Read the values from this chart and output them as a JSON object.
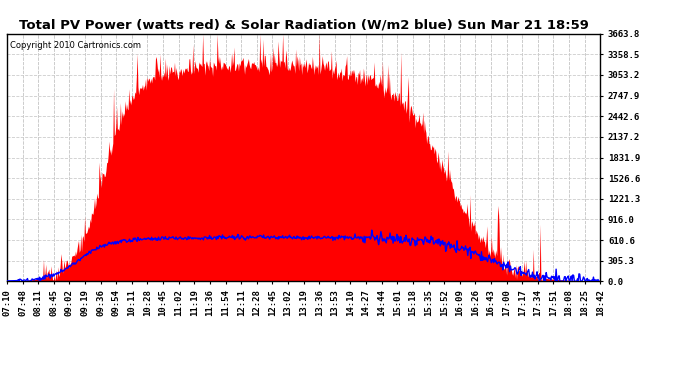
{
  "title": "Total PV Power (watts red) & Solar Radiation (W/m2 blue) Sun Mar 21 18:59",
  "copyright_text": "Copyright 2010 Cartronics.com",
  "background_color": "#ffffff",
  "plot_bg_color": "#ffffff",
  "grid_color": "#aaaaaa",
  "fill_color": "#ff0000",
  "line_color": "#0000ff",
  "y_min": 0.0,
  "y_max": 3663.8,
  "y_ticks": [
    0.0,
    305.3,
    610.6,
    916.0,
    1221.3,
    1526.6,
    1831.9,
    2137.2,
    2442.6,
    2747.9,
    3053.2,
    3358.5,
    3663.8
  ],
  "x_labels": [
    "07:10",
    "07:48",
    "08:11",
    "08:45",
    "09:02",
    "09:19",
    "09:36",
    "09:54",
    "10:11",
    "10:28",
    "10:45",
    "11:02",
    "11:19",
    "11:36",
    "11:54",
    "12:11",
    "12:28",
    "12:45",
    "13:02",
    "13:19",
    "13:36",
    "13:53",
    "14:10",
    "14:27",
    "14:44",
    "15:01",
    "15:18",
    "15:35",
    "15:52",
    "16:09",
    "16:26",
    "16:43",
    "17:00",
    "17:17",
    "17:34",
    "17:51",
    "18:08",
    "18:25",
    "18:42"
  ],
  "title_fontsize": 9.5,
  "tick_fontsize": 6.5,
  "copyright_fontsize": 6
}
